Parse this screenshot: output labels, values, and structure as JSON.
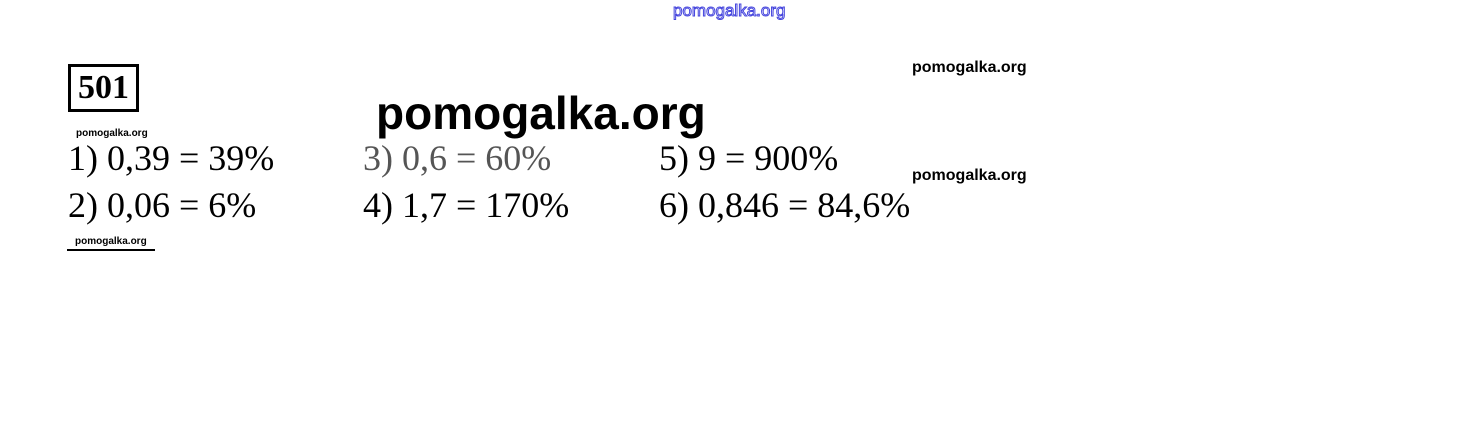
{
  "watermarks": {
    "top": "pomogalka.org",
    "large": "pomogalka.org",
    "right_1": "pomogalka.org",
    "right_2": "pomogalka.org",
    "small_1": "pomogalka.org",
    "small_2": "pomogalka.org"
  },
  "problem_number": "501",
  "answers": [
    "1) 0,39 = 39%",
    "2) 0,06 = 6%",
    "3) 0,6 = 60%",
    "4) 1,7 = 170%",
    "5) 9 = 900%",
    "6) 0,846 = 84,6%"
  ]
}
